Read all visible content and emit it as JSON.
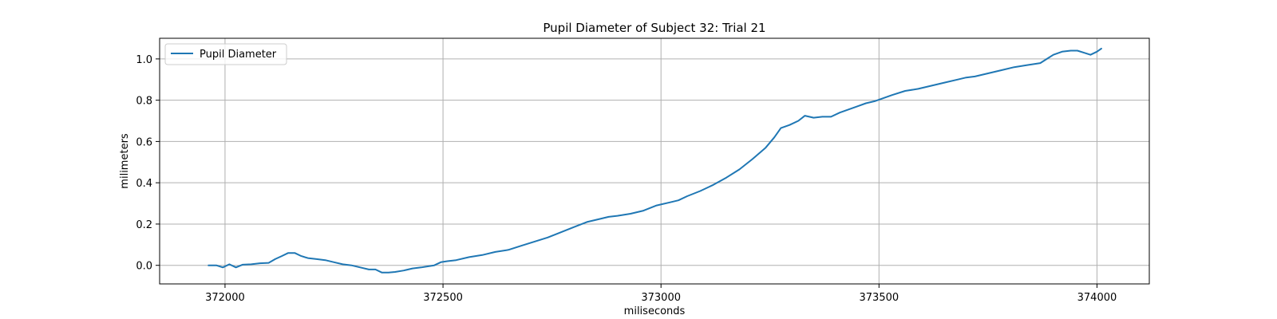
{
  "chart_data": {
    "type": "line",
    "title": "Pupil Diameter of Subject 32: Trial 21",
    "xlabel": "miliseconds",
    "ylabel": "milimeters",
    "xlim": [
      371850,
      374120
    ],
    "ylim": [
      -0.09,
      1.1
    ],
    "xticks": [
      372000,
      372500,
      373000,
      373500,
      374000
    ],
    "xtick_labels": [
      "372000",
      "372500",
      "373000",
      "373500",
      "374000"
    ],
    "yticks": [
      0.0,
      0.2,
      0.4,
      0.6,
      0.8,
      1.0
    ],
    "ytick_labels": [
      "0.0",
      "0.2",
      "0.4",
      "0.6",
      "0.8",
      "1.0"
    ],
    "grid": true,
    "legend_position": "top-left",
    "colors": {
      "series": "#1f77b4",
      "grid": "#b0b0b0",
      "legend_border": "#cccccc"
    },
    "series": [
      {
        "name": "Pupil Diameter",
        "x": [
          371962,
          371980,
          371995,
          372010,
          372025,
          372040,
          372060,
          372080,
          372100,
          372115,
          372130,
          372145,
          372160,
          372175,
          372190,
          372210,
          372230,
          372250,
          372270,
          372290,
          372310,
          372330,
          372345,
          372360,
          372375,
          372390,
          372410,
          372430,
          372450,
          372465,
          372480,
          372495,
          372510,
          372530,
          372560,
          372590,
          372620,
          372650,
          372680,
          372710,
          372740,
          372770,
          372800,
          372830,
          372860,
          372880,
          372900,
          372930,
          372960,
          372990,
          373020,
          373040,
          373060,
          373090,
          373120,
          373150,
          373180,
          373210,
          373240,
          373260,
          373275,
          373295,
          373315,
          373330,
          373350,
          373370,
          373390,
          373410,
          373430,
          373450,
          373470,
          373490,
          373510,
          373530,
          373560,
          373590,
          373620,
          373650,
          373680,
          373700,
          373720,
          373750,
          373780,
          373810,
          373840,
          373870,
          373885,
          373900,
          373920,
          373940,
          373955,
          373970,
          373985,
          374000,
          374010
        ],
        "y": [
          0.0,
          0.0,
          -0.01,
          0.005,
          -0.01,
          0.003,
          0.005,
          0.01,
          0.012,
          0.03,
          0.045,
          0.06,
          0.06,
          0.045,
          0.035,
          0.03,
          0.025,
          0.015,
          0.005,
          0.0,
          -0.01,
          -0.02,
          -0.02,
          -0.035,
          -0.035,
          -0.032,
          -0.025,
          -0.015,
          -0.01,
          -0.005,
          0.0,
          0.015,
          0.02,
          0.025,
          0.04,
          0.05,
          0.065,
          0.075,
          0.095,
          0.115,
          0.135,
          0.16,
          0.185,
          0.21,
          0.225,
          0.235,
          0.24,
          0.25,
          0.265,
          0.29,
          0.305,
          0.315,
          0.335,
          0.36,
          0.39,
          0.425,
          0.465,
          0.515,
          0.57,
          0.62,
          0.665,
          0.68,
          0.7,
          0.725,
          0.715,
          0.72,
          0.72,
          0.74,
          0.755,
          0.77,
          0.785,
          0.795,
          0.81,
          0.825,
          0.845,
          0.855,
          0.87,
          0.885,
          0.9,
          0.91,
          0.915,
          0.93,
          0.945,
          0.96,
          0.97,
          0.98,
          1.0,
          1.02,
          1.035,
          1.04,
          1.04,
          1.03,
          1.02,
          1.035,
          1.05
        ]
      }
    ]
  }
}
